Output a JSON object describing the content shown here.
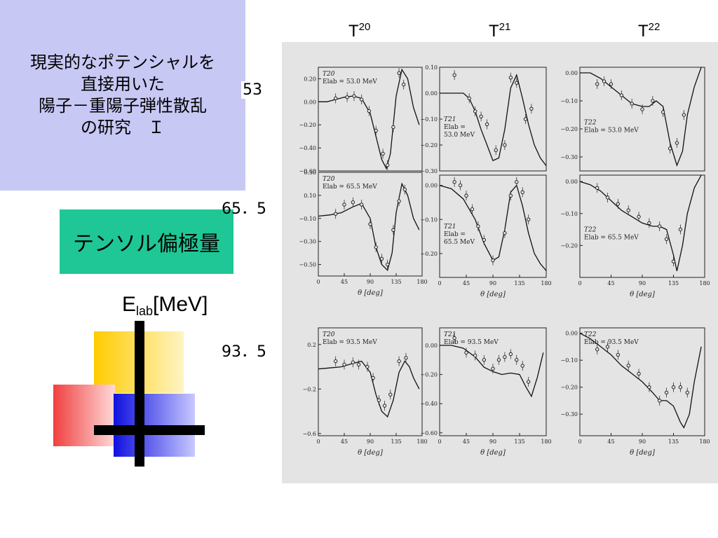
{
  "title_lines": [
    "現実的なポテンシャルを",
    "直接用いた",
    "陽子－重陽子弾性散乱",
    "の研究　Ｉ"
  ],
  "tag": "テンソル偏極量",
  "elab": {
    "main": "E",
    "sub": "lab",
    "unit": "[MeV]"
  },
  "energies": [
    "53",
    "65．5",
    "93．5"
  ],
  "column_heads": [
    {
      "base": "T",
      "sup": "20"
    },
    {
      "base": "T",
      "sup": "21"
    },
    {
      "base": "T",
      "sup": "22"
    }
  ],
  "colors": {
    "title_bg": "#c8c8f5",
    "tag_bg": "#1fc796",
    "panel_bg": "#e4e4e4"
  },
  "chart_data": [
    {
      "type": "line",
      "name": "T20",
      "label": "E_lab = 53.0 MeV",
      "label_tag": "T20",
      "label_line": "Elab = 53.0 MeV",
      "xlim": [
        0,
        180
      ],
      "ylim": [
        -0.6,
        0.3
      ],
      "xticks": [],
      "yticks": [
        0.2,
        0,
        -0.2,
        -0.4,
        -0.6
      ],
      "ytick_labels": [
        "0.20",
        "0.00",
        "−0.20",
        "−0.40",
        "−0.60"
      ],
      "xlabel": "",
      "curve": {
        "x": [
          0,
          15,
          30,
          45,
          60,
          75,
          90,
          100,
          110,
          118,
          125,
          135,
          145,
          155,
          165,
          175
        ],
        "y": [
          0,
          0,
          0.02,
          0.04,
          0.05,
          0.03,
          -0.1,
          -0.3,
          -0.5,
          -0.58,
          -0.45,
          0.05,
          0.28,
          0.2,
          -0.05,
          -0.2
        ]
      },
      "points": {
        "x": [
          30,
          50,
          62,
          75,
          88,
          100,
          112,
          120,
          130,
          140,
          148
        ],
        "y": [
          0.03,
          0.04,
          0.05,
          0.02,
          -0.08,
          -0.25,
          -0.45,
          -0.55,
          -0.22,
          0.25,
          0.15
        ]
      }
    },
    {
      "type": "line",
      "name": "T21",
      "label": "E_lab = 53.0 MeV",
      "label_tag": "T21",
      "label_line": "Elab =",
      "label_line2": "53.0 MeV",
      "xlim": [
        0,
        180
      ],
      "ylim": [
        -0.3,
        0.1
      ],
      "xticks": [],
      "yticks": [
        0.1,
        0,
        -0.1,
        -0.2,
        -0.3
      ],
      "ytick_labels": [
        "0.10",
        "0.00",
        "−0.10",
        "−0.20",
        "−0.30"
      ],
      "xlabel": "",
      "curve": {
        "x": [
          0,
          20,
          40,
          50,
          60,
          70,
          80,
          90,
          100,
          110,
          120,
          130,
          140,
          150,
          160,
          170,
          180
        ],
        "y": [
          0,
          0,
          0,
          -0.02,
          -0.07,
          -0.14,
          -0.2,
          -0.26,
          -0.25,
          -0.14,
          0.02,
          0.07,
          -0.02,
          -0.12,
          -0.2,
          -0.25,
          -0.28
        ]
      },
      "points": {
        "x": [
          25,
          50,
          60,
          70,
          80,
          95,
          110,
          120,
          130,
          145,
          155
        ],
        "y": [
          0.07,
          -0.02,
          -0.07,
          -0.09,
          -0.12,
          -0.22,
          -0.2,
          0.06,
          0.04,
          -0.1,
          -0.06
        ]
      }
    },
    {
      "type": "line",
      "name": "T22",
      "label": "E_lab = 53.0 MeV",
      "label_tag": "T22",
      "label_line": "Elab = 53.0 MeV",
      "xlim": [
        0,
        180
      ],
      "ylim": [
        -0.35,
        0.02
      ],
      "xticks": [],
      "yticks": [
        0,
        -0.1,
        -0.2,
        -0.3
      ],
      "ytick_labels": [
        "0.00",
        "−0.10",
        "−0.20",
        "−0.30"
      ],
      "xlabel": "",
      "curve": {
        "x": [
          0,
          15,
          30,
          45,
          60,
          75,
          90,
          100,
          110,
          120,
          130,
          140,
          148,
          155,
          165,
          175
        ],
        "y": [
          0,
          0,
          -0.02,
          -0.05,
          -0.08,
          -0.11,
          -0.12,
          -0.12,
          -0.1,
          -0.12,
          -0.25,
          -0.33,
          -0.28,
          -0.15,
          -0.05,
          0.02
        ]
      },
      "points": {
        "x": [
          25,
          35,
          45,
          60,
          75,
          90,
          105,
          120,
          130,
          140,
          150
        ],
        "y": [
          -0.04,
          -0.03,
          -0.04,
          -0.08,
          -0.11,
          -0.13,
          -0.1,
          -0.14,
          -0.27,
          -0.25,
          -0.15
        ]
      }
    },
    {
      "type": "line",
      "name": "T20",
      "label": "E_lab = 65.5 MeV",
      "label_tag": "T20",
      "label_line": "Elab = 65.5 MeV",
      "xlim": [
        0,
        180
      ],
      "ylim": [
        -0.6,
        0.3
      ],
      "xticks": [
        0,
        45,
        90,
        135,
        180
      ],
      "yticks": [
        0.3,
        0.1,
        -0.1,
        -0.3,
        -0.5
      ],
      "ytick_labels": [
        "0.30",
        "0.10",
        "−0.10",
        "−0.30",
        "−0.50"
      ],
      "xlabel": "θ [deg]",
      "curve": {
        "x": [
          0,
          20,
          40,
          60,
          75,
          90,
          100,
          110,
          120,
          128,
          135,
          145,
          155,
          165,
          175
        ],
        "y": [
          -0.08,
          -0.07,
          -0.05,
          0,
          0.03,
          -0.1,
          -0.35,
          -0.5,
          -0.55,
          -0.4,
          -0.05,
          0.2,
          0.1,
          -0.1,
          -0.2
        ]
      },
      "points": {
        "x": [
          30,
          45,
          60,
          75,
          90,
          100,
          110,
          120,
          130,
          140,
          150
        ],
        "y": [
          -0.06,
          0.02,
          0.04,
          0.02,
          -0.15,
          -0.35,
          -0.45,
          -0.5,
          -0.2,
          0.05,
          0.15
        ]
      }
    },
    {
      "type": "line",
      "name": "T21",
      "label": "E_lab = 65.5 MeV",
      "label_tag": "T21",
      "label_line": "Elab =",
      "label_line2": "65.5 MeV",
      "xlim": [
        0,
        180
      ],
      "ylim": [
        -0.27,
        0.03
      ],
      "xticks": [
        0,
        45,
        90,
        135,
        180
      ],
      "yticks": [
        0,
        -0.1,
        -0.2
      ],
      "ytick_labels": [
        "0.00",
        "−0.10",
        "−0.20"
      ],
      "xlabel": "θ [deg]",
      "curve": {
        "x": [
          0,
          20,
          40,
          60,
          75,
          90,
          100,
          110,
          120,
          130,
          140,
          150,
          160,
          170,
          180
        ],
        "y": [
          0,
          -0.01,
          -0.04,
          -0.1,
          -0.17,
          -0.22,
          -0.21,
          -0.13,
          -0.02,
          0,
          -0.06,
          -0.14,
          -0.2,
          -0.23,
          -0.25
        ]
      },
      "points": {
        "x": [
          25,
          35,
          45,
          55,
          65,
          75,
          90,
          110,
          120,
          130,
          140,
          150
        ],
        "y": [
          0.01,
          0,
          -0.03,
          -0.07,
          -0.12,
          -0.16,
          -0.22,
          -0.14,
          -0.03,
          0.01,
          -0.02,
          -0.1
        ]
      }
    },
    {
      "type": "line",
      "name": "T22",
      "label": "E_lab = 65.5 MeV",
      "label_tag": "T22",
      "label_line": "Elab = 65.5 MeV",
      "xlim": [
        0,
        180
      ],
      "ylim": [
        -0.3,
        0.02
      ],
      "xticks": [
        0,
        45,
        90,
        135,
        180
      ],
      "yticks": [
        0,
        -0.1,
        -0.2
      ],
      "ytick_labels": [
        "0.00",
        "−0.10",
        "−0.20"
      ],
      "xlabel": "θ [deg]",
      "curve": {
        "x": [
          0,
          15,
          30,
          45,
          60,
          75,
          90,
          105,
          115,
          125,
          135,
          140,
          148,
          155,
          165,
          175
        ],
        "y": [
          0,
          -0.01,
          -0.03,
          -0.06,
          -0.09,
          -0.11,
          -0.13,
          -0.14,
          -0.14,
          -0.15,
          -0.23,
          -0.28,
          -0.2,
          -0.1,
          -0.02,
          0.02
        ]
      },
      "points": {
        "x": [
          25,
          40,
          55,
          70,
          85,
          100,
          115,
          125,
          135,
          145
        ],
        "y": [
          -0.02,
          -0.05,
          -0.07,
          -0.09,
          -0.11,
          -0.13,
          -0.14,
          -0.18,
          -0.25,
          -0.15
        ]
      }
    },
    {
      "type": "line",
      "name": "T20",
      "label": "E_lab = 93.5 MeV",
      "label_tag": "T20",
      "label_line": "Elab = 93.5 MeV",
      "xlim": [
        0,
        180
      ],
      "ylim": [
        -0.62,
        0.35
      ],
      "xticks": [
        0,
        45,
        90,
        135,
        180
      ],
      "yticks": [
        0.2,
        -0.2,
        -0.6
      ],
      "ytick_labels": [
        "0.2",
        "−0.2",
        "−0.6"
      ],
      "xlabel": "θ [deg]",
      "curve": {
        "x": [
          0,
          20,
          40,
          60,
          75,
          90,
          100,
          110,
          120,
          130,
          140,
          150,
          158,
          165,
          175
        ],
        "y": [
          -0.02,
          -0.01,
          0,
          0.03,
          0.05,
          -0.05,
          -0.25,
          -0.4,
          -0.45,
          -0.3,
          -0.05,
          0.05,
          0,
          -0.1,
          -0.2
        ]
      },
      "points": {
        "x": [
          30,
          45,
          60,
          70,
          85,
          95,
          105,
          115,
          125,
          140,
          152
        ],
        "y": [
          0.05,
          0.02,
          0.04,
          0.02,
          0,
          -0.1,
          -0.3,
          -0.35,
          -0.25,
          0.05,
          0.08
        ]
      }
    },
    {
      "type": "line",
      "name": "T21",
      "label": "E_lab = 93.5 MeV",
      "label_tag": "T21",
      "label_line": "Elab = 93.5 MeV",
      "xlim": [
        0,
        180
      ],
      "ylim": [
        -0.62,
        0.12
      ],
      "xticks": [
        0,
        45,
        90,
        135,
        180
      ],
      "yticks": [
        0,
        -0.2,
        -0.4,
        -0.6
      ],
      "ytick_labels": [
        "0.00",
        "−0.20",
        "−0.40",
        "−0.60"
      ],
      "xlabel": "θ [deg]",
      "curve": {
        "x": [
          0,
          20,
          40,
          60,
          75,
          90,
          105,
          120,
          135,
          145,
          155,
          165,
          175
        ],
        "y": [
          0,
          0,
          -0.02,
          -0.08,
          -0.15,
          -0.18,
          -0.2,
          -0.19,
          -0.2,
          -0.28,
          -0.35,
          -0.22,
          -0.05
        ]
      },
      "points": {
        "x": [
          25,
          45,
          60,
          75,
          90,
          100,
          110,
          120,
          130,
          140,
          150
        ],
        "y": [
          0.05,
          -0.05,
          -0.07,
          -0.1,
          -0.16,
          -0.1,
          -0.08,
          -0.06,
          -0.1,
          -0.14,
          -0.25
        ]
      }
    },
    {
      "type": "line",
      "name": "T22",
      "label": "E_lab = 93.5 MeV",
      "label_tag": "T22",
      "label_line": "Elab = 93.5 MeV",
      "xlim": [
        0,
        180
      ],
      "ylim": [
        -0.38,
        0.02
      ],
      "xticks": [
        0,
        45,
        90,
        135,
        180
      ],
      "yticks": [
        0,
        -0.1,
        -0.2,
        -0.3
      ],
      "ytick_labels": [
        "0.00",
        "−0.10",
        "−0.20",
        "−0.30"
      ],
      "xlabel": "θ [deg]",
      "curve": {
        "x": [
          0,
          15,
          30,
          45,
          60,
          75,
          90,
          105,
          115,
          125,
          135,
          145,
          150,
          158,
          165,
          175
        ],
        "y": [
          0,
          -0.02,
          -0.05,
          -0.08,
          -0.12,
          -0.15,
          -0.18,
          -0.22,
          -0.25,
          -0.25,
          -0.27,
          -0.33,
          -0.35,
          -0.3,
          -0.18,
          -0.05
        ]
      },
      "points": {
        "x": [
          25,
          40,
          55,
          70,
          85,
          100,
          115,
          125,
          135,
          145,
          155
        ],
        "y": [
          -0.06,
          -0.05,
          -0.08,
          -0.12,
          -0.15,
          -0.2,
          -0.25,
          -0.22,
          -0.2,
          -0.2,
          -0.22
        ]
      }
    }
  ]
}
